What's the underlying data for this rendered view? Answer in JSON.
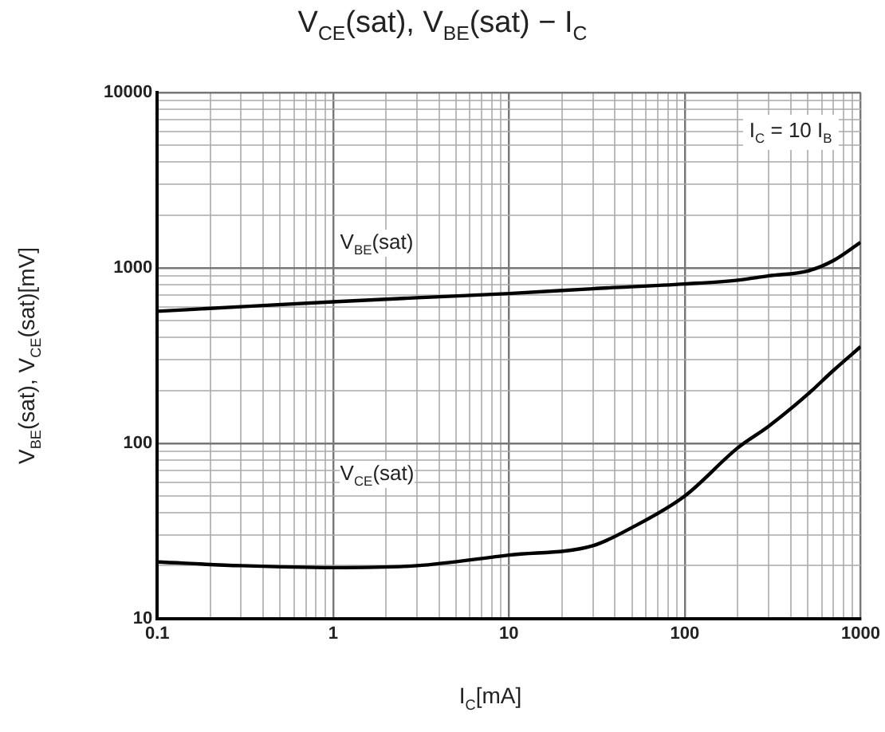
{
  "chart_data": {
    "type": "line",
    "title": "V$_{CE}$(sat), V$_{BE}$(sat) − I$_{C}$",
    "xlabel": "I$_{C}$[mA]",
    "ylabel": "V$_{BE}$(sat), V$_{CE}$(sat)[mV]",
    "log": "xy",
    "grid": true,
    "legend": false,
    "marker": "none",
    "line_style": "solid",
    "xlim": [
      0.1,
      1000
    ],
    "ylim": [
      10,
      10000
    ],
    "xticks": [
      0.1,
      {
        "value": 0.2,
        "label": null
      },
      {
        "value": 0.3,
        "label": null
      },
      {
        "value": 0.4,
        "label": null
      },
      {
        "value": 0.5,
        "label": null
      },
      {
        "value": 0.6,
        "label": null
      },
      {
        "value": 0.7,
        "label": null
      },
      {
        "value": 0.8,
        "label": null
      },
      {
        "value": 0.9,
        "label": null
      },
      1,
      {
        "value": 2,
        "label": null
      },
      {
        "value": 3,
        "label": null
      },
      {
        "value": 4,
        "label": null
      },
      {
        "value": 5,
        "label": null
      },
      {
        "value": 6,
        "label": null
      },
      {
        "value": 7,
        "label": null
      },
      {
        "value": 8,
        "label": null
      },
      {
        "value": 9,
        "label": null
      },
      10,
      {
        "value": 20,
        "label": null
      },
      {
        "value": 30,
        "label": null
      },
      {
        "value": 40,
        "label": null
      },
      {
        "value": 50,
        "label": null
      },
      {
        "value": 60,
        "label": null
      },
      {
        "value": 70,
        "label": null
      },
      {
        "value": 80,
        "label": null
      },
      {
        "value": 90,
        "label": null
      },
      100,
      {
        "value": 200,
        "label": null
      },
      {
        "value": 300,
        "label": null
      },
      {
        "value": 400,
        "label": null
      },
      {
        "value": 500,
        "label": null
      },
      {
        "value": 600,
        "label": null
      },
      {
        "value": 700,
        "label": null
      },
      {
        "value": 800,
        "label": null
      },
      {
        "value": 900,
        "label": null
      },
      1000
    ],
    "yticks": [
      10,
      {
        "value": 20,
        "label": null
      },
      {
        "value": 30,
        "label": null
      },
      {
        "value": 40,
        "label": null
      },
      {
        "value": 50,
        "label": null
      },
      {
        "value": 60,
        "label": null
      },
      {
        "value": 70,
        "label": null
      },
      {
        "value": 80,
        "label": null
      },
      {
        "value": 90,
        "label": null
      },
      100,
      {
        "value": 200,
        "label": null
      },
      {
        "value": 300,
        "label": null
      },
      {
        "value": 400,
        "label": null
      },
      {
        "value": 500,
        "label": null
      },
      {
        "value": 600,
        "label": null
      },
      {
        "value": 700,
        "label": null
      },
      {
        "value": 800,
        "label": null
      },
      {
        "value": 900,
        "label": null
      },
      1000,
      {
        "value": 2000,
        "label": null
      },
      {
        "value": 3000,
        "label": null
      },
      {
        "value": 4000,
        "label": null
      },
      {
        "value": 5000,
        "label": null
      },
      {
        "value": 6000,
        "label": null
      },
      {
        "value": 7000,
        "label": null
      },
      {
        "value": 8000,
        "label": null
      },
      {
        "value": 9000,
        "label": null
      },
      10000
    ],
    "series": [
      {
        "color": "#000000",
        "x": [
          0.1,
          0.3,
          1,
          3,
          10,
          30,
          100,
          200,
          300,
          500,
          700,
          1000
        ],
        "values": [
          565,
          600,
          640,
          675,
          713,
          760,
          809,
          850,
          900,
          960,
          1100,
          1400
        ]
      },
      {
        "color": "#000000",
        "x": [
          0.1,
          0.3,
          1,
          3,
          10,
          30,
          50,
          100,
          200,
          300,
          500,
          700,
          1000
        ],
        "values": [
          21,
          20,
          19.5,
          20,
          23,
          26,
          33,
          50,
          94,
          125,
          190,
          260,
          355
        ]
      }
    ],
    "annotations": [
      "V$_{BE}$(sat)",
      "V$_{CE}$(sat)",
      "I$_{C}$ = 10 I$_{B}$"
    ]
  }
}
